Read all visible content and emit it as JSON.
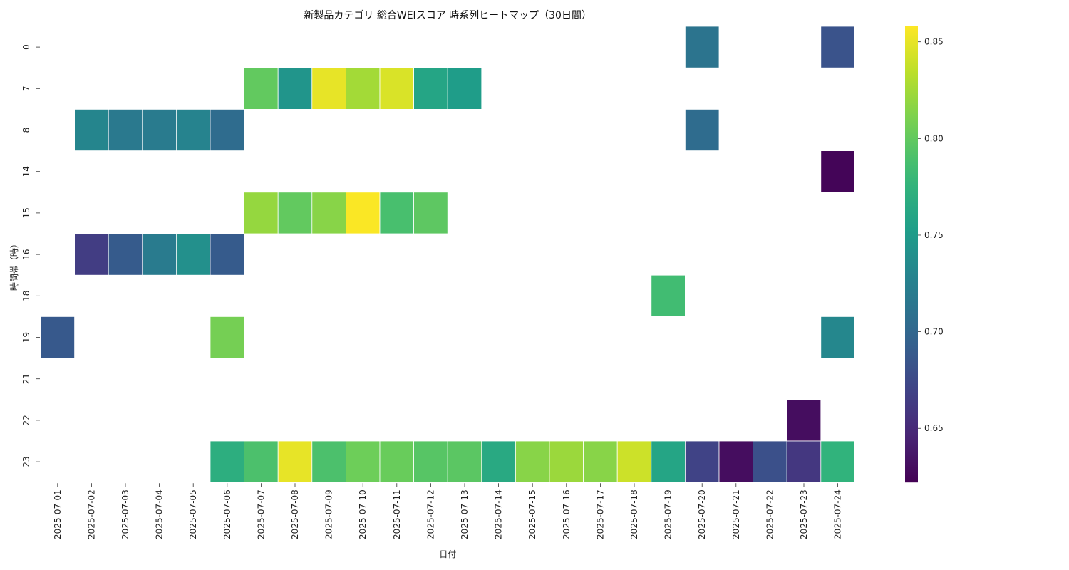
{
  "chart_data": {
    "type": "heatmap",
    "title": "新製品カテゴリ 総合WEIスコア 時系列ヒートマップ（30日間）",
    "xlabel": "日付",
    "ylabel": "時間帯（時）",
    "x_categories": [
      "2025-07-01",
      "2025-07-02",
      "2025-07-03",
      "2025-07-04",
      "2025-07-05",
      "2025-07-06",
      "2025-07-07",
      "2025-07-08",
      "2025-07-09",
      "2025-07-10",
      "2025-07-11",
      "2025-07-12",
      "2025-07-13",
      "2025-07-14",
      "2025-07-15",
      "2025-07-16",
      "2025-07-17",
      "2025-07-18",
      "2025-07-19",
      "2025-07-20",
      "2025-07-21",
      "2025-07-22",
      "2025-07-23",
      "2025-07-24"
    ],
    "y_categories": [
      "0",
      "7",
      "8",
      "14",
      "15",
      "16",
      "18",
      "19",
      "21",
      "22",
      "23"
    ],
    "values": [
      [
        null,
        null,
        null,
        null,
        null,
        null,
        null,
        null,
        null,
        null,
        null,
        null,
        null,
        null,
        null,
        null,
        null,
        null,
        null,
        0.713,
        null,
        null,
        null,
        0.683
      ],
      [
        null,
        null,
        null,
        null,
        null,
        null,
        0.8,
        0.745,
        0.85,
        0.825,
        0.845,
        0.76,
        0.752,
        null,
        null,
        null,
        null,
        null,
        null,
        null,
        null,
        null,
        null,
        null
      ],
      [
        null,
        0.73,
        0.718,
        0.72,
        0.728,
        0.705,
        null,
        null,
        null,
        null,
        null,
        null,
        null,
        null,
        null,
        null,
        null,
        null,
        null,
        0.705,
        null,
        null,
        null,
        null
      ],
      [
        null,
        null,
        null,
        null,
        null,
        null,
        null,
        null,
        null,
        null,
        null,
        null,
        null,
        null,
        null,
        null,
        null,
        null,
        null,
        null,
        null,
        null,
        null,
        0.625
      ],
      [
        null,
        null,
        null,
        null,
        null,
        null,
        0.82,
        0.8,
        0.815,
        0.857,
        0.788,
        0.798,
        null,
        null,
        null,
        null,
        null,
        null,
        null,
        null,
        null,
        null,
        null,
        null
      ],
      [
        null,
        0.665,
        0.69,
        0.72,
        0.74,
        0.69,
        null,
        null,
        null,
        null,
        null,
        null,
        null,
        null,
        null,
        null,
        null,
        null,
        null,
        null,
        null,
        null,
        null,
        null
      ],
      [
        null,
        null,
        null,
        null,
        null,
        null,
        null,
        null,
        null,
        null,
        null,
        null,
        null,
        null,
        null,
        null,
        null,
        null,
        0.785,
        null,
        null,
        null,
        null,
        null
      ],
      [
        0.688,
        null,
        null,
        null,
        null,
        0.808,
        null,
        null,
        null,
        null,
        null,
        null,
        null,
        null,
        null,
        null,
        null,
        null,
        null,
        null,
        null,
        null,
        null,
        0.732
      ],
      [
        null,
        null,
        null,
        null,
        null,
        null,
        null,
        null,
        null,
        null,
        null,
        null,
        null,
        null,
        null,
        null,
        null,
        null,
        null,
        null,
        null,
        null,
        null,
        null
      ],
      [
        null,
        null,
        null,
        null,
        null,
        null,
        null,
        null,
        null,
        null,
        null,
        null,
        null,
        null,
        null,
        null,
        null,
        null,
        null,
        null,
        null,
        null,
        0.63,
        null
      ],
      [
        null,
        null,
        null,
        null,
        null,
        0.77,
        0.79,
        0.85,
        0.79,
        0.805,
        0.803,
        0.795,
        0.797,
        0.765,
        0.815,
        0.822,
        0.815,
        0.84,
        0.76,
        0.67,
        0.63,
        0.68,
        0.66,
        0.775
      ]
    ],
    "vmin": 0.622,
    "vmax": 0.858,
    "colormap": "viridis",
    "colorbar_ticks": [
      0.65,
      0.7,
      0.75,
      0.8,
      0.85
    ],
    "colorbar_tick_labels": [
      "0.65",
      "0.70",
      "0.75",
      "0.80",
      "0.85"
    ],
    "cell_border_color": "#ffffff",
    "grid": false
  }
}
